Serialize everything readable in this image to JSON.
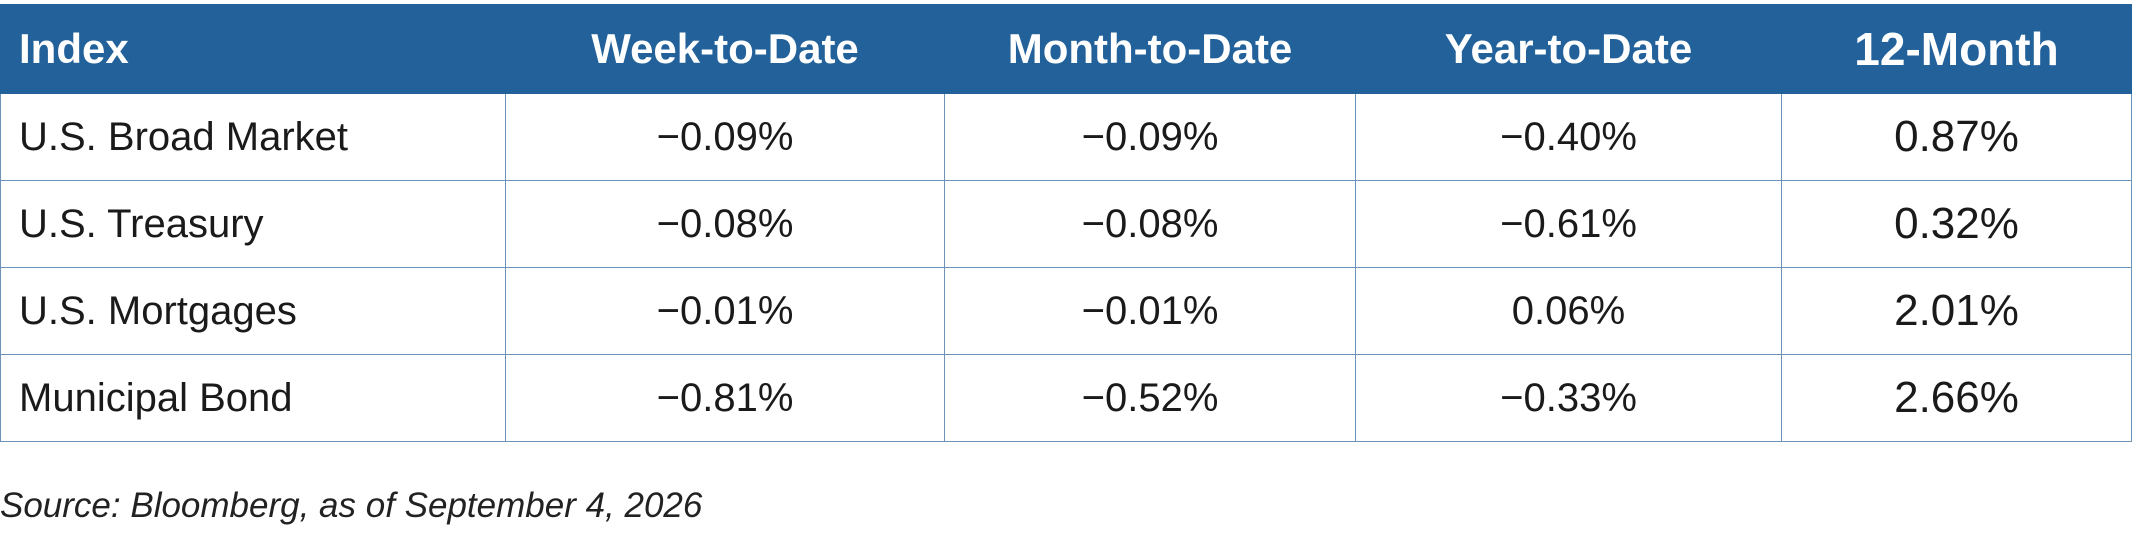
{
  "table": {
    "header": [
      "Index",
      "Week-to-Date",
      "Month-to-Date",
      "Year-to-Date",
      "12-Month"
    ],
    "rows": [
      [
        "U.S. Broad Market",
        "−0.09%",
        "−0.09%",
        "−0.40%",
        "0.87%"
      ],
      [
        "U.S. Treasury",
        "−0.08%",
        "−0.08%",
        "−0.61%",
        "0.32%"
      ],
      [
        "U.S. Mortgages",
        "−0.01%",
        "−0.01%",
        "0.06%",
        "2.01%"
      ],
      [
        "Municipal Bond",
        "−0.81%",
        "−0.52%",
        "−0.33%",
        "2.66%"
      ]
    ]
  },
  "footnote": "Source: Bloomberg, as of September 4, 2026"
}
